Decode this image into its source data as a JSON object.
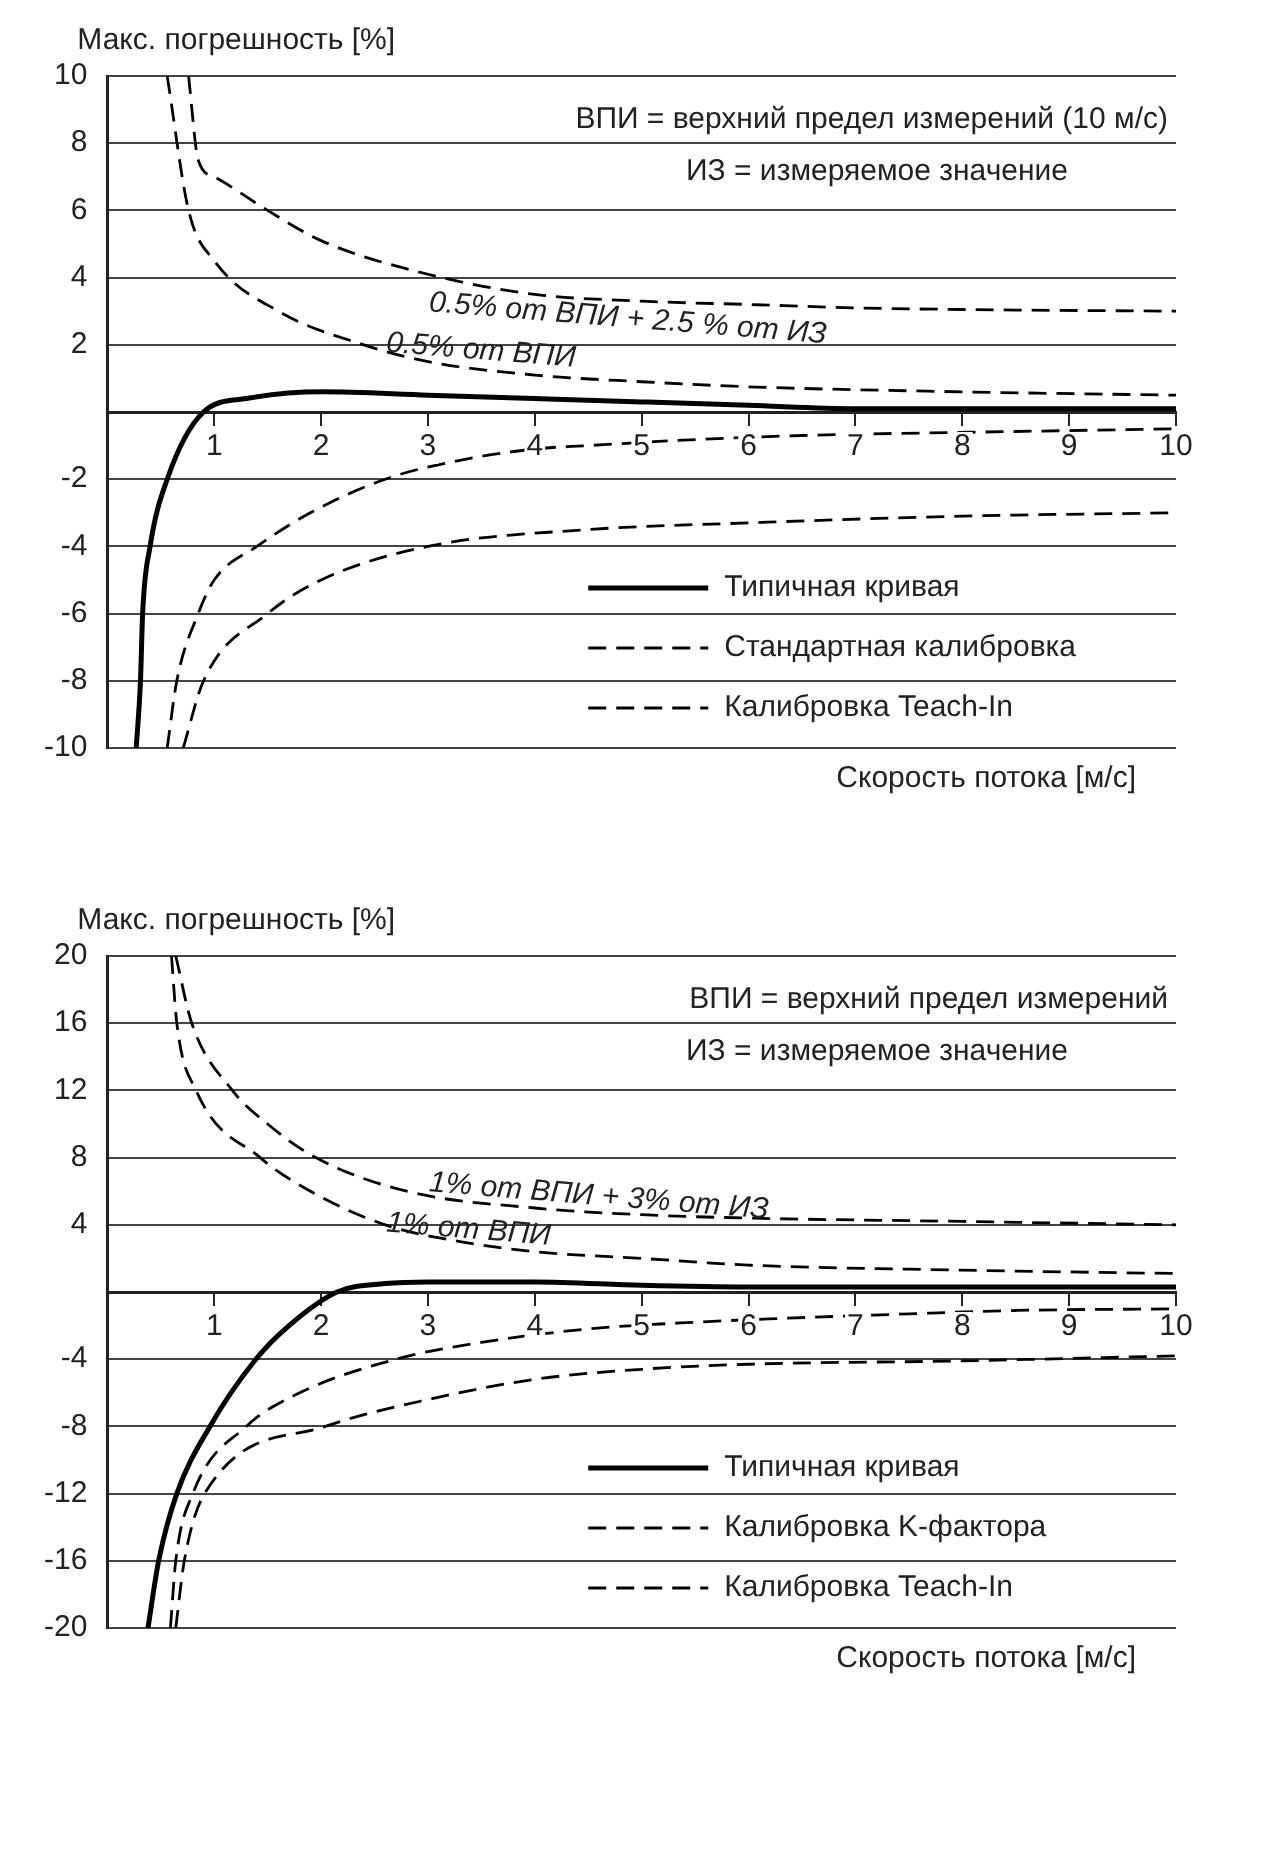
{
  "chart_data": [
    {
      "type": "line",
      "xlabel": "Скорость потока [м/с]",
      "ylabel": "Макс. погрешность [%]",
      "xlim": [
        0,
        10
      ],
      "xticks": [
        1,
        2,
        3,
        4,
        5,
        6,
        7,
        8,
        9,
        10
      ],
      "ylim": [
        -10,
        10
      ],
      "yticks": [
        -10,
        -8,
        -6,
        -4,
        -2,
        {
          "value": 0,
          "label": null
        },
        2,
        4,
        6,
        8,
        10
      ],
      "grid": "y",
      "legend": "bottom right",
      "marker": "none",
      "annotations": [
        "ВПИ = верхний предел измерений (10 м/с)",
        "ИЗ = измеряемое значение",
        "0.5% от ВПИ + 2.5 % от ИЗ",
        "0.5% от ВПИ"
      ],
      "series": [
        {
          "name": "Типичная кривая",
          "color": "#000000",
          "line_style": "solid",
          "x": [
            0.27,
            0.31,
            0.33,
            0.4,
            0.56,
            0.9,
            1.3,
            2,
            3,
            4,
            5,
            6,
            7,
            8,
            10
          ],
          "values": [
            -10,
            -8,
            -6,
            -4,
            -2,
            0,
            0.4,
            0.6,
            0.5,
            0.4,
            0.3,
            0.2,
            0.1,
            0.1,
            0.1
          ]
        },
        {
          "name": "Стандартная калибровка",
          "color": "#000000",
          "line_style": "dashed",
          "x": [
            0.76,
            0.85,
            1,
            1.5,
            2,
            3,
            4,
            5,
            6,
            7,
            8,
            10
          ],
          "values": [
            10,
            7.5,
            7,
            6,
            5.1,
            4.1,
            3.5,
            3.3,
            3.2,
            3.1,
            3.05,
            3
          ]
        },
        {
          "color": "#000000",
          "line_style": "dashed",
          "x": [
            0.71,
            0.9,
            1.5,
            2,
            3,
            4.5,
            6,
            8,
            10
          ],
          "values": [
            -10,
            -8,
            -6,
            -5,
            -4,
            -3.5,
            -3.3,
            -3.1,
            -3
          ]
        },
        {
          "name": "Калибровка Teach-In",
          "color": "#000000",
          "line_style": "dashed",
          "x": [
            0.56,
            0.76,
            1,
            1.6,
            2.4,
            3,
            4,
            5,
            6,
            8,
            10
          ],
          "values": [
            10,
            6,
            4.5,
            3,
            2,
            1.5,
            1.1,
            0.9,
            0.75,
            0.6,
            0.5
          ]
        },
        {
          "color": "#000000",
          "line_style": "dashed",
          "x": [
            0.56,
            0.65,
            0.85,
            1,
            1.4,
            1.9,
            2.6,
            3.2,
            4,
            4.5,
            5.5,
            6.5,
            8.5,
            10
          ],
          "values": [
            -10,
            -8,
            -6,
            -5,
            -4,
            -3,
            -2,
            -1.5,
            -1.1,
            -1,
            -0.82,
            -0.7,
            -0.58,
            -0.5
          ]
        }
      ]
    },
    {
      "type": "line",
      "xlabel": "Скорость потока [м/с]",
      "ylabel": "Макс. погрешность [%]",
      "xlim": [
        0,
        10
      ],
      "xticks": [
        1,
        2,
        3,
        4,
        5,
        6,
        7,
        8,
        9,
        10
      ],
      "ylim": [
        -20,
        20
      ],
      "yticks": [
        -20,
        -16,
        -12,
        -8,
        -4,
        {
          "value": 0,
          "label": null
        },
        4,
        8,
        12,
        16,
        20
      ],
      "grid": "y",
      "legend": "bottom right",
      "marker": "none",
      "annotations": [
        "ВПИ = верхний предел измерений",
        "ИЗ = измеряемое значение",
        "1% от ВПИ + 3% от ИЗ",
        "1% от ВПИ"
      ],
      "series": [
        {
          "name": "Типичная кривая",
          "color": "#000000",
          "line_style": "solid",
          "x": [
            0.38,
            0.48,
            0.65,
            0.96,
            1.39,
            1.7,
            2.15,
            2.6,
            3,
            4,
            5,
            6,
            8,
            10
          ],
          "values": [
            -20,
            -16,
            -12,
            -8,
            -4,
            -2,
            0,
            0.5,
            0.6,
            0.6,
            0.4,
            0.3,
            0.3,
            0.3
          ]
        },
        {
          "name": "Калибровка K-фактора",
          "color": "#000000",
          "line_style": "dashed",
          "x": [
            0.64,
            0.79,
            1.17,
            1.5,
            1.95,
            2.8,
            4,
            5,
            6,
            8,
            10
          ],
          "values": [
            20,
            16,
            12,
            10,
            8,
            6,
            5,
            4.6,
            4.4,
            4.2,
            4
          ]
        },
        {
          "color": "#000000",
          "line_style": "dashed",
          "x": [
            0.64,
            0.72,
            0.91,
            2.04,
            3,
            4,
            5,
            6,
            8,
            10
          ],
          "values": [
            -20,
            -16,
            -12,
            -8,
            -6.4,
            -5.2,
            -4.6,
            -4.3,
            -4.1,
            -3.8
          ]
        },
        {
          "name": "Калибровка Teach-In",
          "color": "#000000",
          "line_style": "dashed",
          "x": [
            0.6,
            0.65,
            0.83,
            1.43,
            1.9,
            2.6,
            3.3,
            4,
            5,
            6,
            8,
            10
          ],
          "values": [
            20,
            16,
            12,
            8,
            6,
            4,
            3,
            2.4,
            2,
            1.6,
            1.3,
            1.1
          ]
        },
        {
          "color": "#000000",
          "line_style": "dashed",
          "x": [
            0.59,
            0.64,
            0.8,
            1.3,
            1.8,
            2.7,
            3.5,
            4.5,
            5.5,
            7.5,
            8.5,
            10
          ],
          "values": [
            -20,
            -16,
            -12,
            -8,
            -6,
            -4,
            -3,
            -2.2,
            -1.8,
            -1.3,
            -1.1,
            -1
          ]
        }
      ]
    }
  ]
}
